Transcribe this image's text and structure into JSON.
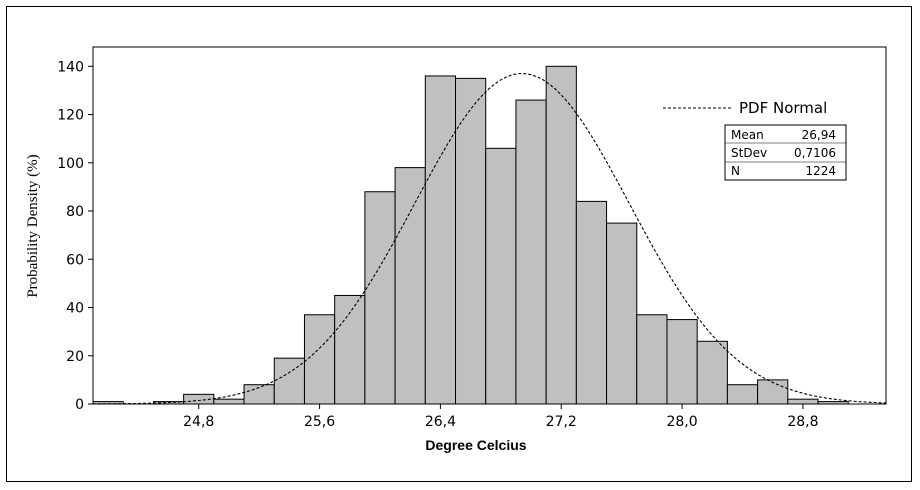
{
  "chart_data": {
    "type": "bar",
    "subtype": "histogram",
    "xlabel": "Degree Celcius",
    "ylabel": "Probability Density (%)",
    "bin_width": 0.2,
    "bin_centers": [
      24.2,
      24.4,
      24.6,
      24.8,
      25.0,
      25.2,
      25.4,
      25.6,
      25.8,
      26.0,
      26.2,
      26.4,
      26.6,
      26.8,
      27.0,
      27.2,
      27.4,
      27.6,
      27.8,
      28.0,
      28.2,
      28.4,
      28.6,
      28.8,
      29.0,
      29.2
    ],
    "values": [
      1,
      0,
      1,
      4,
      2,
      8,
      19,
      37,
      45,
      88,
      98,
      136,
      135,
      106,
      126,
      140,
      84,
      75,
      37,
      35,
      26,
      8,
      10,
      2,
      1,
      0
    ],
    "x_ticks": [
      {
        "value": 24.8,
        "label": "24,8"
      },
      {
        "value": 25.6,
        "label": "25,6"
      },
      {
        "value": 26.4,
        "label": "26,4"
      },
      {
        "value": 27.2,
        "label": "27,2"
      },
      {
        "value": 28.0,
        "label": "28,0"
      },
      {
        "value": 28.8,
        "label": "28,8"
      }
    ],
    "y_ticks": [
      {
        "value": 0,
        "label": "0"
      },
      {
        "value": 20,
        "label": "20"
      },
      {
        "value": 40,
        "label": "40"
      },
      {
        "value": 60,
        "label": "60"
      },
      {
        "value": 80,
        "label": "80"
      },
      {
        "value": 100,
        "label": "100"
      },
      {
        "value": 120,
        "label": "120"
      },
      {
        "value": 140,
        "label": "140"
      }
    ],
    "xlim": [
      24.1,
      29.35
    ],
    "ylim": [
      0,
      148
    ],
    "fit": {
      "name": "PDF Normal",
      "mean": 26.94,
      "stdev": 0.7106,
      "n": 1224,
      "peak": 137,
      "style": "dashed"
    },
    "stats_box": [
      {
        "label": "Mean",
        "value": "26,94"
      },
      {
        "label": "StDev",
        "value": "0,7106"
      },
      {
        "label": "N",
        "value": "1224"
      }
    ],
    "bar_color": "#c0c0c0",
    "bar_edge": "#000000",
    "legend_position": "top-right",
    "grid": false
  }
}
